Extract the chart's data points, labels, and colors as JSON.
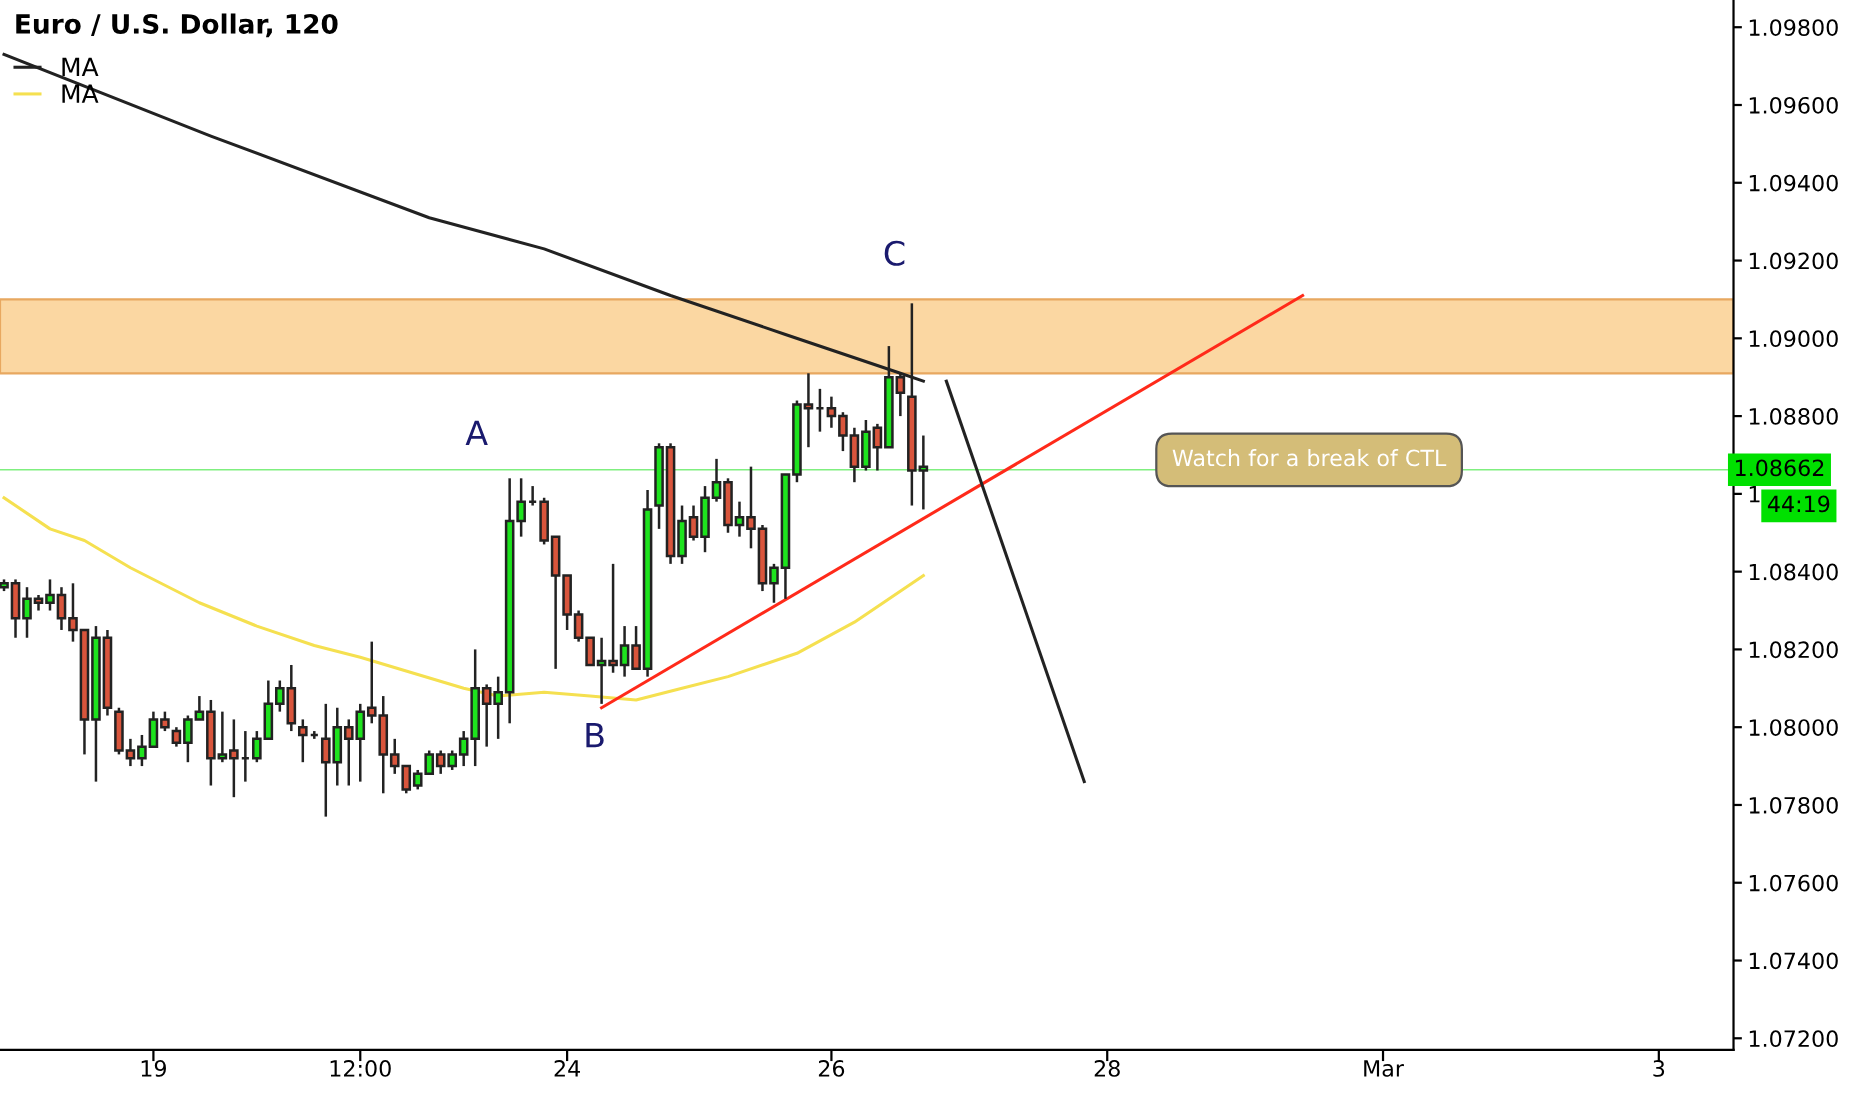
{
  "chart_data": {
    "type": "candlestick",
    "title": "Euro / U.S. Dollar, 120",
    "categories": [
      null,
      null,
      null,
      null,
      null,
      null,
      null,
      null,
      null,
      null,
      null,
      null,
      null,
      "19",
      null,
      null,
      null,
      null,
      null,
      null,
      null,
      null,
      null,
      null,
      null,
      null,
      null,
      null,
      null,
      null,
      null,
      "12:00",
      null,
      null,
      null,
      null,
      null,
      null,
      null,
      null,
      null,
      null,
      null,
      null,
      null,
      null,
      null,
      null,
      null,
      "24",
      null,
      null,
      null,
      null,
      null,
      null,
      null,
      null,
      null,
      null,
      null,
      null,
      null,
      null,
      null,
      null,
      null,
      null,
      null,
      null,
      null,
      null,
      "26",
      null,
      null,
      null,
      null,
      null,
      null,
      null,
      null,
      null,
      null,
      null,
      null,
      null,
      null,
      null,
      null,
      null,
      null,
      null,
      null,
      null,
      null,
      null,
      "28",
      null,
      null,
      null,
      null,
      null,
      null,
      null,
      null,
      null,
      null,
      null,
      null,
      null,
      null,
      null,
      null,
      null,
      null,
      null,
      null,
      null,
      null,
      null,
      "Mar",
      null,
      null,
      null,
      null,
      null,
      null,
      null,
      null,
      null,
      null,
      null,
      null,
      null,
      null,
      null,
      null,
      null,
      null,
      null,
      null,
      null,
      null,
      null,
      "3",
      null,
      null,
      null,
      null,
      null,
      null
    ],
    "ohlc": [
      [
        1.0836,
        1.0838,
        1.0835,
        1.0837
      ],
      [
        1.0837,
        1.0838,
        1.0823,
        1.0828
      ],
      [
        1.0828,
        1.0836,
        1.0823,
        1.0833
      ],
      [
        1.0833,
        1.0834,
        1.083,
        1.0832
      ],
      [
        1.0832,
        1.0838,
        1.083,
        1.0834
      ],
      [
        1.0834,
        1.0836,
        1.0825,
        1.0828
      ],
      [
        1.0828,
        1.0837,
        1.0822,
        1.0825
      ],
      [
        1.0825,
        1.0825,
        1.0793,
        1.0802
      ],
      [
        1.0802,
        1.0826,
        1.0786,
        1.0823
      ],
      [
        1.0823,
        1.0825,
        1.0803,
        1.0805
      ],
      [
        1.0804,
        1.0805,
        1.0793,
        1.0794
      ],
      [
        1.0794,
        1.0797,
        1.079,
        1.0792
      ],
      [
        1.0792,
        1.0798,
        1.079,
        1.0795
      ],
      [
        1.0795,
        1.0804,
        1.0795,
        1.0802
      ],
      [
        1.0802,
        1.0804,
        1.0799,
        1.08
      ],
      [
        1.0799,
        1.08,
        1.0795,
        1.0796
      ],
      [
        1.0796,
        1.0803,
        1.0791,
        1.0802
      ],
      [
        1.0802,
        1.0808,
        1.0802,
        1.0804
      ],
      [
        1.0804,
        1.0807,
        1.0785,
        1.0792
      ],
      [
        1.0792,
        1.0804,
        1.0791,
        1.0793
      ],
      [
        1.0794,
        1.0802,
        1.0782,
        1.0792
      ],
      [
        1.0792,
        1.0799,
        1.0786,
        1.0792
      ],
      [
        1.0792,
        1.0799,
        1.0791,
        1.0797
      ],
      [
        1.0797,
        1.0812,
        1.0797,
        1.0806
      ],
      [
        1.0806,
        1.0812,
        1.0804,
        1.081
      ],
      [
        1.081,
        1.0816,
        1.0799,
        1.0801
      ],
      [
        1.08,
        1.0802,
        1.0791,
        1.0798
      ],
      [
        1.0798,
        1.0799,
        1.0797,
        1.0798
      ],
      [
        1.0797,
        1.0806,
        1.0777,
        1.0791
      ],
      [
        1.0791,
        1.0805,
        1.0785,
        1.08
      ],
      [
        1.08,
        1.0802,
        1.0785,
        1.0797
      ],
      [
        1.0797,
        1.0806,
        1.0786,
        1.0804
      ],
      [
        1.0805,
        1.0822,
        1.0801,
        1.0803
      ],
      [
        1.0803,
        1.0808,
        1.0783,
        1.0793
      ],
      [
        1.0793,
        1.0797,
        1.0788,
        1.079
      ],
      [
        1.079,
        1.079,
        1.0783,
        1.0784
      ],
      [
        1.0785,
        1.0789,
        1.0784,
        1.0788
      ],
      [
        1.0788,
        1.0794,
        1.0788,
        1.0793
      ],
      [
        1.0793,
        1.0794,
        1.0788,
        1.079
      ],
      [
        1.079,
        1.0794,
        1.0789,
        1.0793
      ],
      [
        1.0793,
        1.0799,
        1.079,
        1.0797
      ],
      [
        1.0797,
        1.082,
        1.079,
        1.081
      ],
      [
        1.081,
        1.0811,
        1.0795,
        1.0806
      ],
      [
        1.0806,
        1.0813,
        1.0797,
        1.0809
      ],
      [
        1.0809,
        1.0864,
        1.0801,
        1.0853
      ],
      [
        1.0853,
        1.0864,
        1.0849,
        1.0858
      ],
      [
        1.0858,
        1.0862,
        1.0857,
        1.0858
      ],
      [
        1.0858,
        1.0859,
        1.0847,
        1.0848
      ],
      [
        1.0849,
        1.0849,
        1.0815,
        1.0839
      ],
      [
        1.0839,
        1.0839,
        1.0825,
        1.0829
      ],
      [
        1.0829,
        1.083,
        1.0822,
        1.0823
      ],
      [
        1.0823,
        1.0823,
        1.0816,
        1.0816
      ],
      [
        1.0816,
        1.0823,
        1.0806,
        1.0817
      ],
      [
        1.0817,
        1.0842,
        1.0814,
        1.0816
      ],
      [
        1.0816,
        1.0826,
        1.0813,
        1.0821
      ],
      [
        1.0821,
        1.0826,
        1.0815,
        1.0815
      ],
      [
        1.0815,
        1.0861,
        1.0813,
        1.0856
      ],
      [
        1.0857,
        1.0873,
        1.0851,
        1.0872
      ],
      [
        1.0872,
        1.0873,
        1.0842,
        1.0844
      ],
      [
        1.0844,
        1.0857,
        1.0842,
        1.0853
      ],
      [
        1.0854,
        1.0857,
        1.0848,
        1.0849
      ],
      [
        1.0849,
        1.0862,
        1.0845,
        1.0859
      ],
      [
        1.0859,
        1.0869,
        1.0858,
        1.0863
      ],
      [
        1.0863,
        1.0864,
        1.085,
        1.0852
      ],
      [
        1.0852,
        1.0858,
        1.0849,
        1.0854
      ],
      [
        1.0854,
        1.0867,
        1.0846,
        1.0851
      ],
      [
        1.0851,
        1.0852,
        1.0835,
        1.0837
      ],
      [
        1.0837,
        1.0842,
        1.0832,
        1.0841
      ],
      [
        1.0841,
        1.0865,
        1.0833,
        1.0865
      ],
      [
        1.0865,
        1.0884,
        1.0863,
        1.0883
      ],
      [
        1.0883,
        1.0891,
        1.0872,
        1.0882
      ],
      [
        1.0882,
        1.0887,
        1.0876,
        1.0882
      ],
      [
        1.0882,
        1.0885,
        1.0877,
        1.088
      ],
      [
        1.088,
        1.0881,
        1.0871,
        1.0875
      ],
      [
        1.0875,
        1.0877,
        1.0863,
        1.0867
      ],
      [
        1.0867,
        1.0879,
        1.0866,
        1.0876
      ],
      [
        1.0877,
        1.0878,
        1.0866,
        1.0872
      ],
      [
        1.0872,
        1.0898,
        1.0872,
        1.089
      ],
      [
        1.089,
        1.0891,
        1.088,
        1.0886
      ],
      [
        1.0885,
        1.0909,
        1.0857,
        1.0866
      ],
      [
        1.0867,
        1.0875,
        1.0856,
        1.0866
      ],
      null,
      null,
      null,
      null,
      null,
      null,
      null,
      null,
      null,
      null,
      null,
      null,
      null,
      null,
      null,
      null,
      null,
      null,
      null,
      null,
      null,
      null,
      null,
      null,
      null,
      null,
      null,
      null,
      null,
      null,
      null,
      null,
      null,
      null,
      null,
      null,
      null,
      null,
      null,
      null,
      null,
      null,
      null,
      null,
      null,
      null,
      null,
      null,
      null,
      null,
      null,
      null,
      null,
      null,
      null,
      null,
      null,
      null,
      null,
      null,
      null,
      null,
      null,
      null,
      null,
      null,
      null,
      null,
      null,
      null
    ],
    "colors": [
      "#1ee31e",
      "#d9553c",
      "#1ee31e",
      "#d9553c",
      "#1ee31e",
      "#d9553c",
      "#d9553c",
      "#d9553c",
      "#1ee31e",
      "#d9553c",
      "#d9553c",
      "#d9553c",
      "#1ee31e",
      "#1ee31e",
      "#d9553c",
      "#d9553c",
      "#1ee31e",
      "#1ee31e",
      "#d9553c",
      "#1ee31e",
      "#d9553c",
      "#222222",
      "#1ee31e",
      "#1ee31e",
      "#1ee31e",
      "#d9553c",
      "#d9553c",
      "#222222",
      "#d9553c",
      "#1ee31e",
      "#d9553c",
      "#1ee31e",
      "#d9553c",
      "#d9553c",
      "#d9553c",
      "#d9553c",
      "#1ee31e",
      "#1ee31e",
      "#d9553c",
      "#1ee31e",
      "#1ee31e",
      "#1ee31e",
      "#d9553c",
      "#1ee31e",
      "#1ee31e",
      "#1ee31e",
      "#222222",
      "#d9553c",
      "#d9553c",
      "#d9553c",
      "#d9553c",
      "#d9553c",
      "#1ee31e",
      "#d9553c",
      "#1ee31e",
      "#d9553c",
      "#1ee31e",
      "#1ee31e",
      "#d9553c",
      "#1ee31e",
      "#d9553c",
      "#1ee31e",
      "#1ee31e",
      "#d9553c",
      "#1ee31e",
      "#d9553c",
      "#d9553c",
      "#1ee31e",
      "#1ee31e",
      "#1ee31e",
      "#d9553c",
      "#222222",
      "#d9553c",
      "#d9553c",
      "#d9553c",
      "#1ee31e",
      "#d9553c",
      "#1ee31e",
      "#d9553c",
      "#d9553c",
      "#1ee31e",
      null,
      null,
      null,
      null,
      null,
      null,
      null,
      null,
      null,
      null,
      null,
      null,
      null,
      null,
      null,
      null,
      null,
      null,
      null,
      null,
      null,
      null,
      null,
      null,
      null,
      null,
      null,
      null,
      null,
      null,
      null,
      null,
      null,
      null,
      null,
      null,
      null,
      null,
      null,
      null,
      null,
      null,
      null,
      null,
      null,
      null,
      null,
      null,
      null,
      null,
      null,
      null,
      null,
      null,
      null,
      null,
      null,
      null,
      null,
      null,
      null,
      null,
      null,
      null,
      null,
      null,
      null,
      null,
      null,
      null
    ],
    "series": [
      {
        "type": "line",
        "name": "MA",
        "color": "#222222",
        "values": [
          1.0973,
          null,
          null,
          null,
          null,
          null,
          null,
          null,
          null,
          null,
          null,
          null,
          null,
          null,
          null,
          null,
          null,
          null,
          1.0952,
          null,
          null,
          null,
          null,
          null,
          null,
          null,
          null,
          null,
          null,
          null,
          null,
          null,
          null,
          null,
          null,
          null,
          null,
          1.0931,
          null,
          null,
          null,
          null,
          null,
          null,
          null,
          null,
          null,
          1.0923,
          null,
          null,
          null,
          null,
          null,
          null,
          null,
          null,
          null,
          null,
          1.0911,
          null,
          null,
          null,
          null,
          null,
          null,
          null,
          null,
          null,
          1.0901,
          null,
          null,
          null,
          null,
          null,
          null,
          null,
          null,
          null,
          1.0891,
          null,
          1.0889,
          null,
          null,
          null,
          null,
          null,
          null,
          null,
          null,
          null,
          null,
          null,
          null,
          null,
          null,
          null,
          null,
          null,
          null,
          null,
          null,
          null,
          null,
          null,
          null,
          null,
          null,
          null,
          null,
          null,
          null,
          null,
          null,
          null,
          null,
          null,
          null,
          null,
          null,
          null,
          null,
          null,
          null,
          null,
          null,
          null,
          null,
          null,
          null,
          null,
          null,
          null,
          null,
          null,
          null,
          null,
          null,
          null,
          null,
          null,
          null,
          null,
          null,
          null,
          null,
          null,
          null,
          null,
          null,
          null,
          null
        ]
      },
      {
        "type": "line",
        "name": "MA",
        "color": "#f5e050",
        "values": [
          1.0859,
          null,
          null,
          null,
          1.0851,
          null,
          null,
          1.0848,
          null,
          null,
          null,
          1.0841,
          null,
          null,
          null,
          null,
          null,
          1.0832,
          null,
          null,
          null,
          null,
          1.0826,
          null,
          null,
          null,
          null,
          1.0821,
          null,
          null,
          null,
          1.0818,
          null,
          null,
          null,
          null,
          null,
          null,
          null,
          null,
          1.081,
          null,
          null,
          1.0808,
          null,
          null,
          null,
          1.0809,
          null,
          null,
          null,
          1.0808,
          null,
          null,
          null,
          1.0807,
          null,
          null,
          null,
          1.081,
          null,
          null,
          null,
          1.0813,
          null,
          null,
          null,
          null,
          null,
          1.0819,
          null,
          null,
          null,
          null,
          1.0827,
          null,
          null,
          null,
          null,
          null,
          1.0839,
          null,
          null,
          null,
          null,
          null,
          null,
          null,
          null,
          null,
          null,
          null,
          null,
          null,
          null,
          null,
          null,
          null,
          null,
          null,
          null,
          null,
          null,
          null,
          null,
          null,
          null,
          null,
          null,
          null,
          null,
          null,
          null,
          null,
          null,
          null,
          null,
          null,
          null,
          null,
          null,
          null,
          null,
          null,
          null,
          null,
          null,
          null,
          null,
          null,
          null,
          null,
          null,
          null,
          null,
          null,
          null,
          null,
          null,
          null,
          null,
          null,
          null,
          null,
          null,
          null,
          null,
          null,
          null,
          null,
          null
        ]
      },
      {
        "type": "line",
        "color": "#ff2a1a",
        "values": [
          null,
          null,
          null,
          null,
          null,
          null,
          null,
          null,
          null,
          null,
          null,
          null,
          null,
          null,
          null,
          null,
          null,
          null,
          null,
          null,
          null,
          null,
          null,
          null,
          null,
          null,
          null,
          null,
          null,
          null,
          null,
          null,
          null,
          null,
          null,
          null,
          null,
          null,
          null,
          null,
          null,
          null,
          null,
          null,
          null,
          null,
          null,
          null,
          null,
          null,
          null,
          null,
          1.0805,
          null,
          null,
          null,
          null,
          null,
          null,
          null,
          null,
          null,
          null,
          null,
          null,
          null,
          null,
          null,
          null,
          null,
          null,
          null,
          null,
          null,
          null,
          null,
          null,
          null,
          null,
          null,
          null,
          null,
          null,
          null,
          null,
          null,
          null,
          null,
          null,
          null,
          null,
          null,
          null,
          null,
          null,
          null,
          null,
          null,
          null,
          null,
          null,
          null,
          null,
          null,
          null,
          null,
          null,
          null,
          null,
          null,
          null,
          null,
          null,
          1.0911,
          null,
          null,
          null,
          null,
          null,
          null,
          null,
          null,
          null,
          null,
          null,
          null,
          null,
          null,
          null,
          null,
          null,
          null,
          null,
          null,
          null,
          null,
          null,
          null,
          null,
          null,
          null,
          null,
          null,
          null,
          null,
          null,
          null,
          null,
          null,
          null,
          null
        ]
      },
      {
        "type": "line",
        "color": "#222222",
        "values": [
          null,
          null,
          null,
          null,
          null,
          null,
          null,
          null,
          null,
          null,
          null,
          null,
          null,
          null,
          null,
          null,
          null,
          null,
          null,
          null,
          null,
          null,
          null,
          null,
          null,
          null,
          null,
          null,
          null,
          null,
          null,
          null,
          null,
          null,
          null,
          null,
          null,
          null,
          null,
          null,
          null,
          null,
          null,
          null,
          null,
          null,
          null,
          null,
          null,
          null,
          null,
          null,
          null,
          null,
          null,
          null,
          null,
          null,
          null,
          null,
          null,
          null,
          null,
          null,
          null,
          null,
          null,
          null,
          null,
          null,
          null,
          null,
          null,
          null,
          null,
          null,
          null,
          null,
          null,
          null,
          null,
          null,
          1.0889,
          null,
          null,
          null,
          null,
          null,
          null,
          null,
          null,
          null,
          null,
          null,
          1.0786,
          null,
          null,
          null,
          null,
          null,
          null,
          null,
          null,
          null,
          null,
          null,
          null,
          null,
          null,
          null,
          null,
          null,
          null,
          null,
          null,
          null,
          null,
          null,
          null,
          null,
          null,
          null,
          null,
          null,
          null,
          null,
          null,
          null,
          null,
          null,
          null,
          null,
          null,
          null,
          null,
          null,
          null,
          null,
          null,
          null,
          null,
          null,
          null,
          null,
          null,
          null,
          null,
          null,
          null,
          null,
          null
        ]
      }
    ],
    "bands": [
      {
        "axis": "y",
        "from": 1.0891,
        "to": 1.091,
        "color": "#fbd7a2"
      }
    ],
    "ref_lines": [
      {
        "axis": "y",
        "value": 1.08662,
        "label": "1.08662",
        "color": "#00e000"
      }
    ],
    "annotations": [
      "A",
      "B",
      "C",
      "Watch for a break of CTL",
      "44:19"
    ],
    "ylim": [
      1.0717,
      1.0987
    ],
    "yticks": [
      {
        "value": 1.072,
        "label": "1.07200"
      },
      {
        "value": 1.074,
        "label": "1.07400"
      },
      {
        "value": 1.076,
        "label": "1.07600"
      },
      {
        "value": 1.078,
        "label": "1.07800"
      },
      {
        "value": 1.08,
        "label": "1.08000"
      },
      {
        "value": 1.082,
        "label": "1.08200"
      },
      {
        "value": 1.084,
        "label": "1.08400"
      },
      {
        "value": 1.086,
        "label": "1"
      },
      {
        "value": 1.088,
        "label": "1.08800"
      },
      {
        "value": 1.09,
        "label": "1.09000"
      },
      {
        "value": 1.092,
        "label": "1.09200"
      },
      {
        "value": 1.094,
        "label": "1.09400"
      },
      {
        "value": 1.096,
        "label": "1.09600"
      },
      {
        "value": 1.098,
        "label": "1.09800"
      }
    ],
    "grid": false,
    "legend": "top left",
    "marker": "none",
    "line_style": "solid"
  }
}
